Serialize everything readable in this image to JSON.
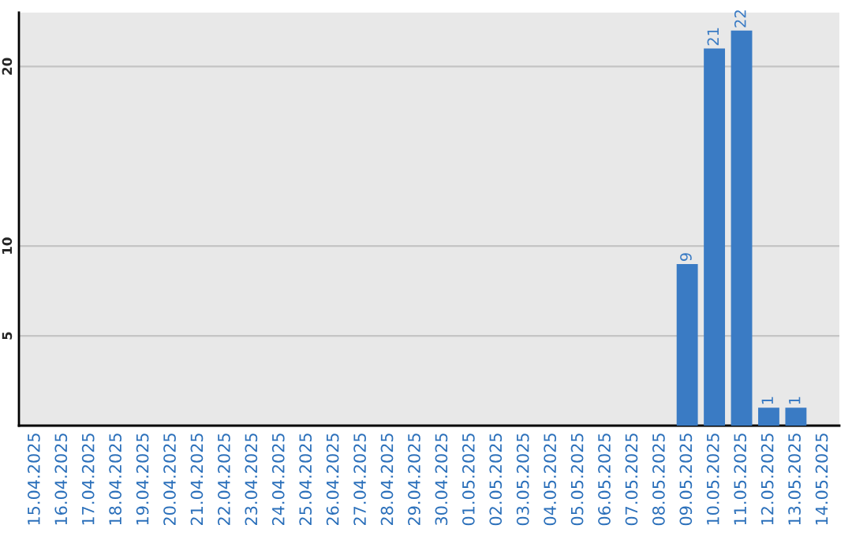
{
  "chart_data": {
    "type": "bar",
    "categories": [
      "15.04.2025",
      "16.04.2025",
      "17.04.2025",
      "18.04.2025",
      "19.04.2025",
      "20.04.2025",
      "21.04.2025",
      "22.04.2025",
      "23.04.2025",
      "24.04.2025",
      "25.04.2025",
      "26.04.2025",
      "27.04.2025",
      "28.04.2025",
      "29.04.2025",
      "30.04.2025",
      "01.05.2025",
      "02.05.2025",
      "03.05.2025",
      "04.05.2025",
      "05.05.2025",
      "06.05.2025",
      "07.05.2025",
      "08.05.2025",
      "09.05.2025",
      "10.05.2025",
      "11.05.2025",
      "12.05.2025",
      "13.05.2025",
      "14.05.2025"
    ],
    "values": [
      null,
      null,
      null,
      null,
      null,
      null,
      null,
      null,
      null,
      null,
      null,
      null,
      null,
      null,
      null,
      null,
      null,
      null,
      null,
      null,
      null,
      null,
      null,
      null,
      9,
      21,
      22,
      1,
      1,
      null
    ],
    "value_labels": [
      null,
      null,
      null,
      null,
      null,
      null,
      null,
      null,
      null,
      null,
      null,
      null,
      null,
      null,
      null,
      null,
      null,
      null,
      null,
      null,
      null,
      null,
      null,
      null,
      "9",
      "21",
      "22",
      "1",
      "1",
      null
    ],
    "color": "#3a7bc4",
    "ylim": [
      0,
      23
    ],
    "yticks": [
      5,
      10,
      20
    ],
    "grid": "y",
    "legend": false
  }
}
